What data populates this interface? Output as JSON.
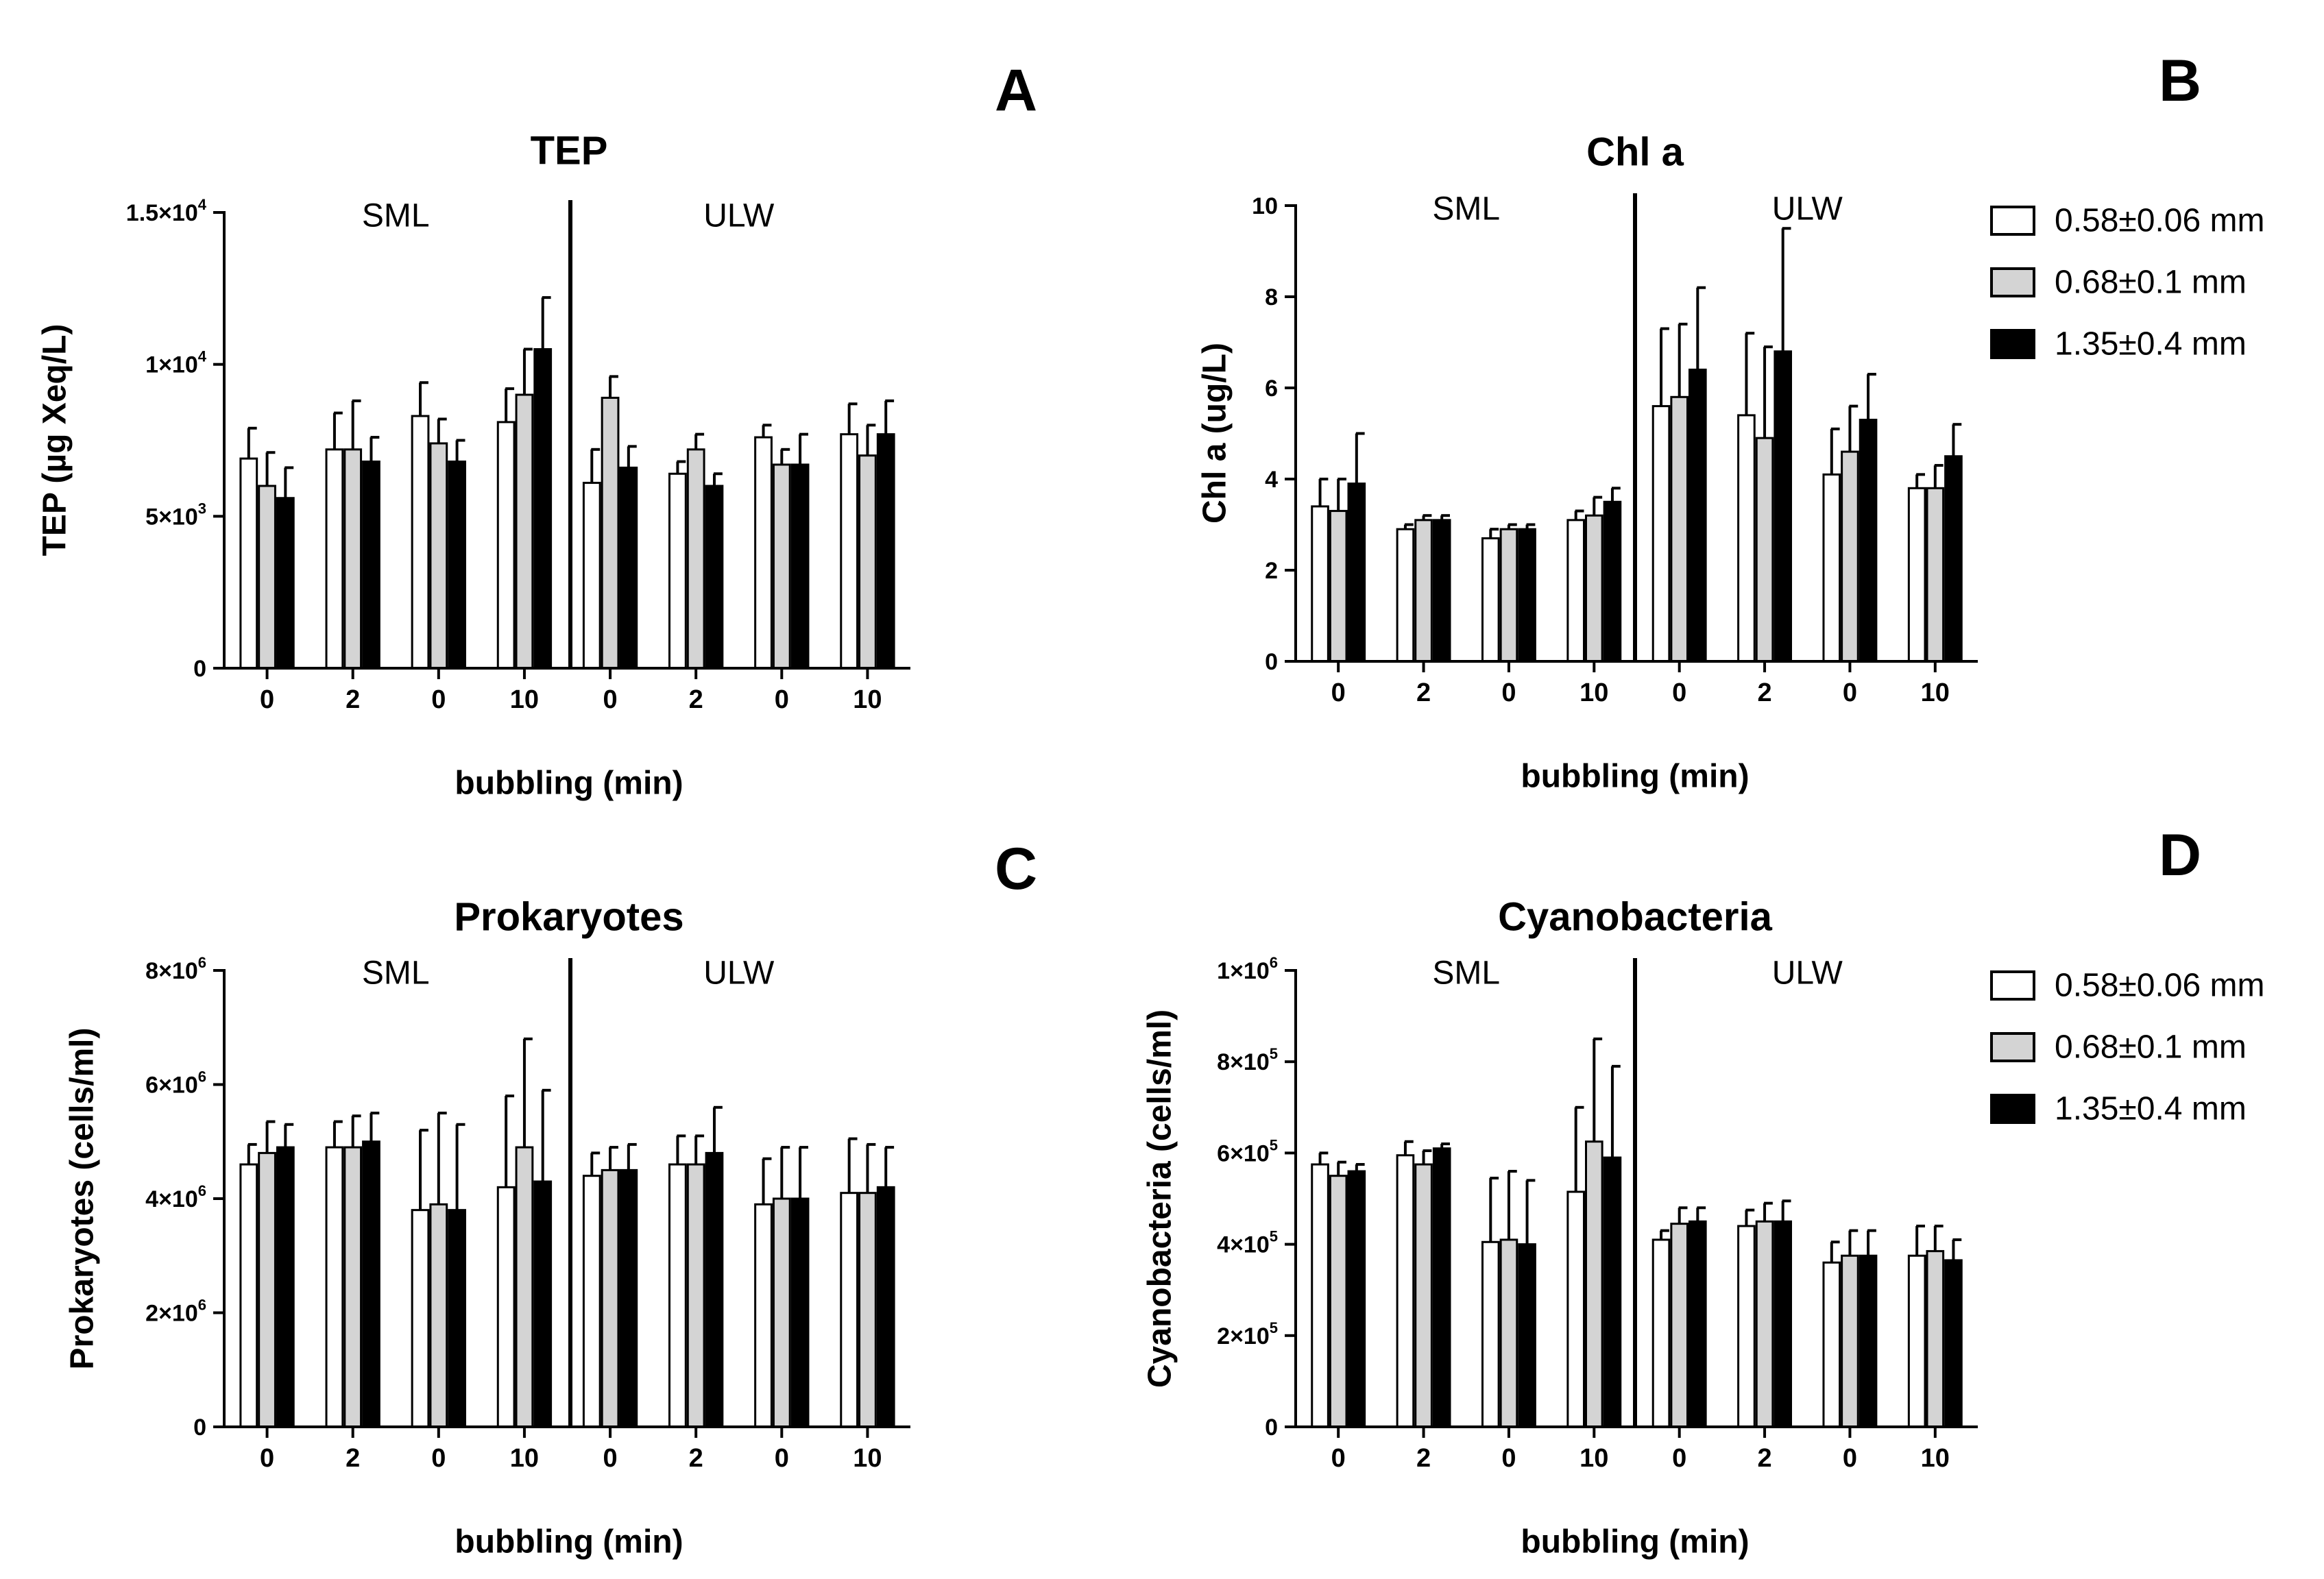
{
  "legend": {
    "entries": [
      {
        "label": "0.58±0.06 mm",
        "color": "#ffffff"
      },
      {
        "label": "0.68±0.1 mm",
        "color": "#d4d4d4"
      },
      {
        "label": "1.35±0.4 mm",
        "color": "#000000"
      }
    ]
  },
  "chart_data": [
    {
      "id": "A",
      "letter": "A",
      "type": "bar",
      "title": "TEP",
      "xlabel": "bubbling (min)",
      "ylabel": "TEP (µg Xeq/L)",
      "regions": [
        "SML",
        "ULW"
      ],
      "categories": [
        "0",
        "2",
        "0",
        "10",
        "0",
        "2",
        "0",
        "10"
      ],
      "ylim": [
        0,
        15000
      ],
      "yticks": [
        {
          "value": 0,
          "mantissa": "0",
          "exp": ""
        },
        {
          "value": 5000,
          "mantissa": "5×10",
          "exp": "3"
        },
        {
          "value": 10000,
          "mantissa": "1×10",
          "exp": "4"
        },
        {
          "value": 15000,
          "mantissa": "1.5×10",
          "exp": "4"
        }
      ],
      "series": [
        {
          "values": [
            6900,
            7200,
            8300,
            8100,
            6100,
            6400,
            7600,
            7700
          ],
          "errors": [
            1000,
            1200,
            1100,
            1100,
            1100,
            400,
            400,
            1000
          ]
        },
        {
          "values": [
            6000,
            7200,
            7400,
            9000,
            8900,
            7200,
            6700,
            7000
          ],
          "errors": [
            1100,
            1600,
            800,
            1500,
            700,
            500,
            500,
            1000
          ]
        },
        {
          "values": [
            5600,
            6800,
            6800,
            10500,
            6600,
            6000,
            6700,
            7700
          ],
          "errors": [
            1000,
            800,
            700,
            1700,
            700,
            400,
            1000,
            1100
          ]
        }
      ]
    },
    {
      "id": "B",
      "letter": "B",
      "type": "bar",
      "title": "Chl a",
      "xlabel": "bubbling (min)",
      "ylabel": "Chl a (ug/L)",
      "regions": [
        "SML",
        "ULW"
      ],
      "categories": [
        "0",
        "2",
        "0",
        "10",
        "0",
        "2",
        "0",
        "10"
      ],
      "ylim": [
        0,
        10
      ],
      "yticks": [
        {
          "value": 0,
          "mantissa": "0",
          "exp": ""
        },
        {
          "value": 2,
          "mantissa": "2",
          "exp": ""
        },
        {
          "value": 4,
          "mantissa": "4",
          "exp": ""
        },
        {
          "value": 6,
          "mantissa": "6",
          "exp": ""
        },
        {
          "value": 8,
          "mantissa": "8",
          "exp": ""
        },
        {
          "value": 10,
          "mantissa": "10",
          "exp": ""
        }
      ],
      "series": [
        {
          "values": [
            3.4,
            2.9,
            2.7,
            3.1,
            5.6,
            5.4,
            4.1,
            3.8
          ],
          "errors": [
            0.6,
            0.1,
            0.2,
            0.2,
            1.7,
            1.8,
            1.0,
            0.3
          ]
        },
        {
          "values": [
            3.3,
            3.1,
            2.9,
            3.2,
            5.8,
            4.9,
            4.6,
            3.8
          ],
          "errors": [
            0.7,
            0.1,
            0.1,
            0.4,
            1.6,
            2.0,
            1.0,
            0.5
          ]
        },
        {
          "values": [
            3.9,
            3.1,
            2.9,
            3.5,
            6.4,
            6.8,
            5.3,
            4.5
          ],
          "errors": [
            1.1,
            0.1,
            0.1,
            0.3,
            1.8,
            2.7,
            1.0,
            0.7
          ]
        }
      ]
    },
    {
      "id": "C",
      "letter": "C",
      "type": "bar",
      "title": "Prokaryotes",
      "xlabel": "bubbling (min)",
      "ylabel": "Prokaryotes (cells/ml)",
      "regions": [
        "SML",
        "ULW"
      ],
      "categories": [
        "0",
        "2",
        "0",
        "10",
        "0",
        "2",
        "0",
        "10"
      ],
      "ylim": [
        0,
        8000000
      ],
      "yticks": [
        {
          "value": 0,
          "mantissa": "0",
          "exp": ""
        },
        {
          "value": 2000000,
          "mantissa": "2×10",
          "exp": "6"
        },
        {
          "value": 4000000,
          "mantissa": "4×10",
          "exp": "6"
        },
        {
          "value": 6000000,
          "mantissa": "6×10",
          "exp": "6"
        },
        {
          "value": 8000000,
          "mantissa": "8×10",
          "exp": "6"
        }
      ],
      "series": [
        {
          "values": [
            4600000,
            4900000,
            3800000,
            4200000,
            4400000,
            4600000,
            3900000,
            4100000
          ],
          "errors": [
            350000,
            450000,
            1400000,
            1600000,
            400000,
            500000,
            800000,
            950000
          ]
        },
        {
          "values": [
            4800000,
            4900000,
            3900000,
            4900000,
            4500000,
            4600000,
            4000000,
            4100000
          ],
          "errors": [
            550000,
            550000,
            1600000,
            1900000,
            400000,
            500000,
            900000,
            850000
          ]
        },
        {
          "values": [
            4900000,
            5000000,
            3800000,
            4300000,
            4500000,
            4800000,
            4000000,
            4200000
          ],
          "errors": [
            400000,
            500000,
            1500000,
            1600000,
            450000,
            800000,
            900000,
            700000
          ]
        }
      ]
    },
    {
      "id": "D",
      "letter": "D",
      "type": "bar",
      "title": "Cyanobacteria",
      "xlabel": "bubbling (min)",
      "ylabel": "Cyanobacteria (cells/ml)",
      "regions": [
        "SML",
        "ULW"
      ],
      "categories": [
        "0",
        "2",
        "0",
        "10",
        "0",
        "2",
        "0",
        "10"
      ],
      "ylim": [
        0,
        1000000
      ],
      "yticks": [
        {
          "value": 0,
          "mantissa": "0",
          "exp": ""
        },
        {
          "value": 200000,
          "mantissa": "2×10",
          "exp": "5"
        },
        {
          "value": 400000,
          "mantissa": "4×10",
          "exp": "5"
        },
        {
          "value": 600000,
          "mantissa": "6×10",
          "exp": "5"
        },
        {
          "value": 800000,
          "mantissa": "8×10",
          "exp": "5"
        },
        {
          "value": 1000000,
          "mantissa": "1×10",
          "exp": "6"
        }
      ],
      "series": [
        {
          "values": [
            575000,
            595000,
            405000,
            515000,
            410000,
            440000,
            360000,
            375000
          ],
          "errors": [
            25000,
            30000,
            140000,
            185000,
            20000,
            35000,
            45000,
            65000
          ]
        },
        {
          "values": [
            550000,
            575000,
            410000,
            625000,
            445000,
            450000,
            375000,
            385000
          ],
          "errors": [
            30000,
            30000,
            150000,
            225000,
            35000,
            40000,
            55000,
            55000
          ]
        },
        {
          "values": [
            560000,
            610000,
            400000,
            590000,
            450000,
            450000,
            375000,
            365000
          ],
          "errors": [
            15000,
            10000,
            140000,
            200000,
            30000,
            45000,
            55000,
            45000
          ]
        }
      ]
    }
  ]
}
